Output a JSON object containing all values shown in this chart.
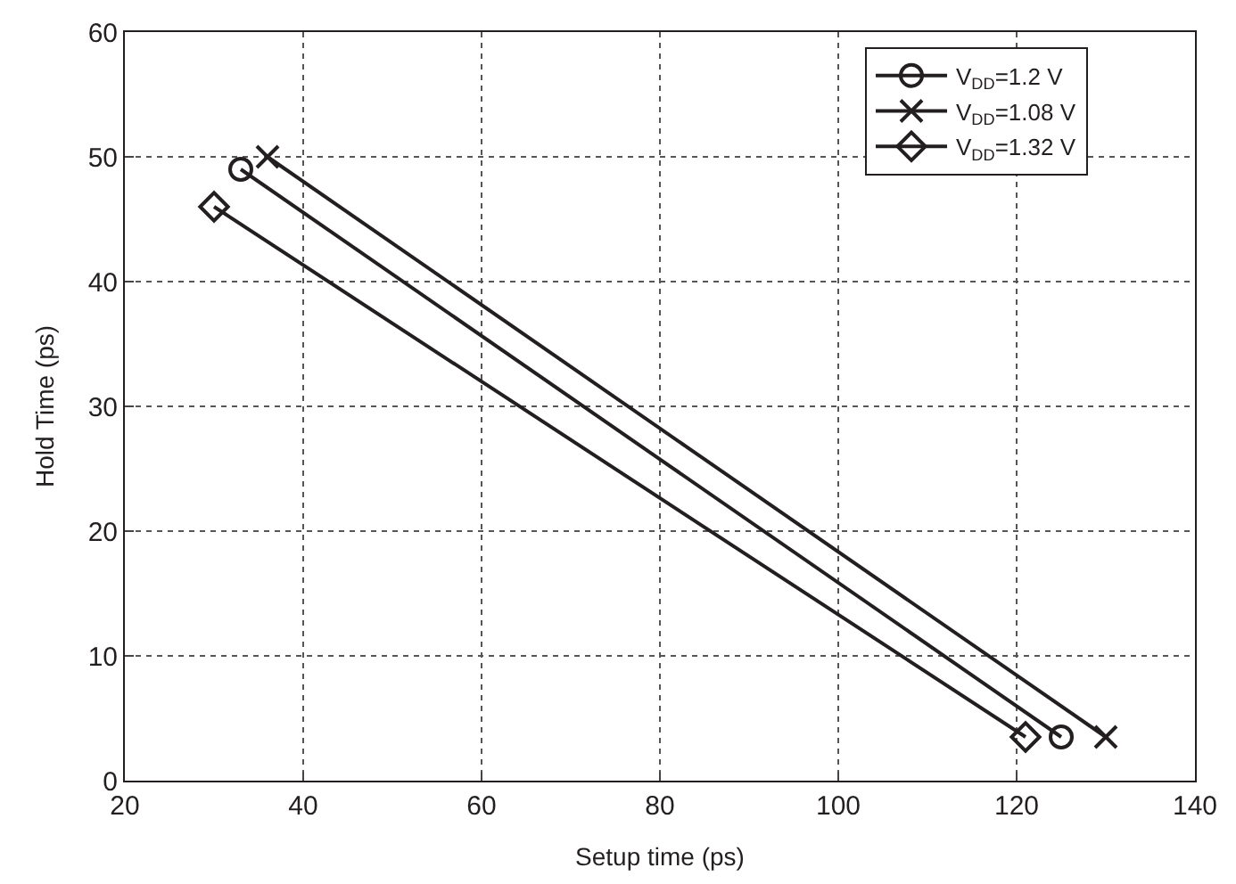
{
  "chart_data": {
    "type": "line",
    "xlabel": "Setup time (ps)",
    "ylabel": "Hold Time (ps)",
    "xlim": [
      20,
      140
    ],
    "xticks": [
      20,
      40,
      60,
      80,
      100,
      120,
      140
    ],
    "ylim": [
      0,
      60
    ],
    "yticks": [
      0,
      10,
      20,
      30,
      40,
      50,
      60
    ],
    "grid": true,
    "legend": "top right",
    "series": [
      {
        "name": "V$_{DD}$=1.2 V",
        "color": "#231f20",
        "marker": "circle",
        "x": [
          33,
          125
        ],
        "values": [
          49,
          3.5
        ]
      },
      {
        "name": "V$_{DD}$=1.08 V",
        "color": "#231f20",
        "marker": "cross",
        "x": [
          36,
          130
        ],
        "values": [
          50,
          3.5
        ]
      },
      {
        "name": "V$_{DD}$=1.32 V",
        "color": "#231f20",
        "marker": "diamond",
        "x": [
          30,
          121
        ],
        "values": [
          46,
          3.5
        ]
      }
    ]
  }
}
